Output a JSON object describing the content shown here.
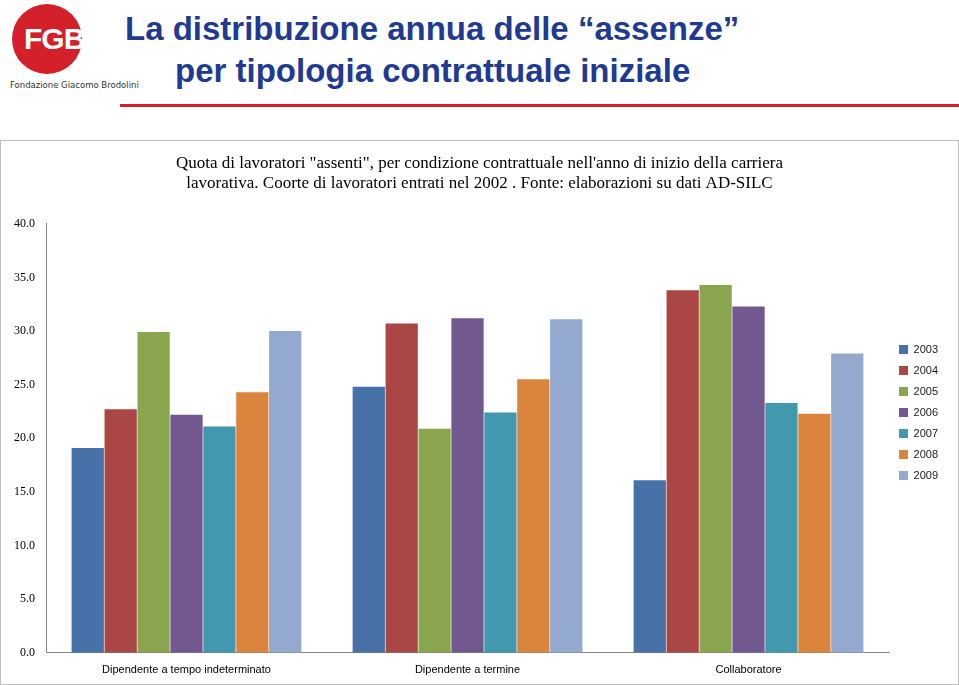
{
  "header": {
    "logo": "FGB",
    "organization": "Fondazione Giacomo Brodolini",
    "title": [
      "La distribuzione annua delle “assenze”",
      "per tipologia contrattuale iniziale"
    ]
  },
  "chart_data": {
    "type": "bar",
    "title": [
      "Quota di lavoratori \"assenti\", per condizione contrattuale nell'anno di inizio della carriera",
      "lavorativa. Coorte di lavoratori entrati nel 2002 . Fonte: elaborazioni su dati AD-SILC"
    ],
    "categories": [
      "Dipendente a tempo indeterminato",
      "Dipendente a termine",
      "Collaboratore"
    ],
    "series": [
      {
        "name": "2003",
        "color": "#4672a8",
        "values": [
          19.1,
          24.8,
          16.1
        ]
      },
      {
        "name": "2004",
        "color": "#aa4643",
        "values": [
          22.7,
          30.7,
          33.8
        ]
      },
      {
        "name": "2005",
        "color": "#89a54e",
        "values": [
          29.9,
          20.9,
          34.3
        ]
      },
      {
        "name": "2006",
        "color": "#71588f",
        "values": [
          22.2,
          31.2,
          32.3
        ]
      },
      {
        "name": "2007",
        "color": "#4198af",
        "values": [
          21.1,
          22.4,
          23.3
        ]
      },
      {
        "name": "2008",
        "color": "#db843d",
        "values": [
          24.3,
          25.5,
          22.3
        ]
      },
      {
        "name": "2009",
        "color": "#93a9cf",
        "values": [
          30.0,
          31.1,
          27.9
        ]
      }
    ],
    "ylim": [
      0,
      40
    ],
    "yticks": [
      {
        "value": 0,
        "label": "0.0"
      },
      {
        "value": 5,
        "label": "5.0"
      },
      {
        "value": 10,
        "label": "10.0"
      },
      {
        "value": 15,
        "label": "15.0"
      },
      {
        "value": 20,
        "label": "20.0"
      },
      {
        "value": 25,
        "label": "25.0"
      },
      {
        "value": 30,
        "label": "30.0"
      },
      {
        "value": 35,
        "label": "35.0"
      },
      {
        "value": 40,
        "label": "40.0"
      }
    ],
    "grid": false,
    "legend": "right"
  }
}
